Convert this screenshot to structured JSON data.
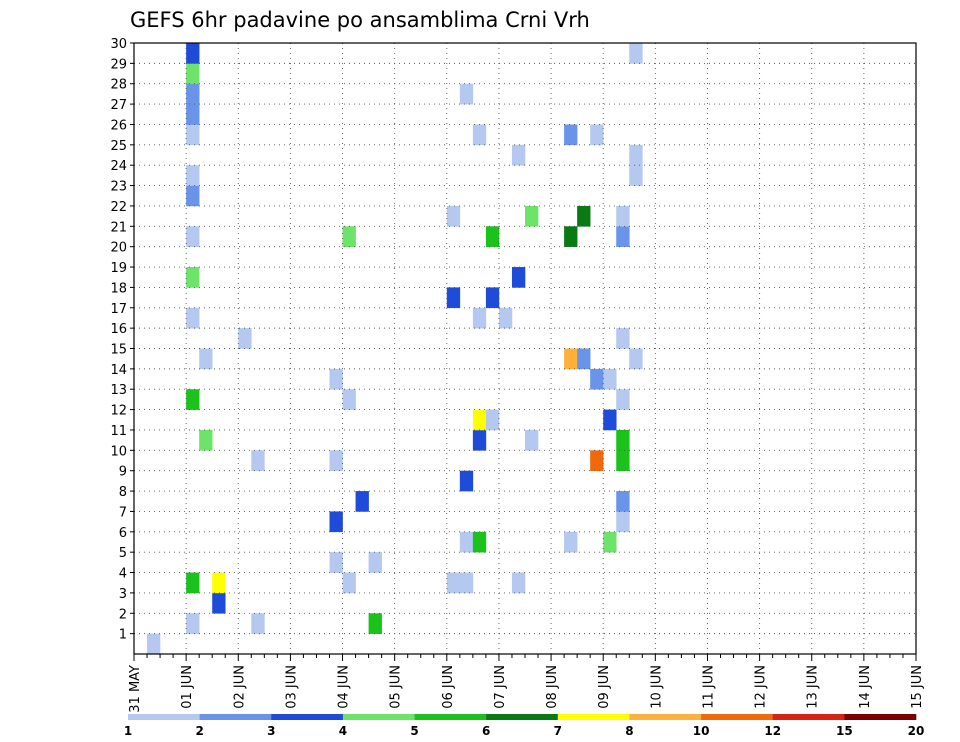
{
  "chart_data": {
    "type": "heatmap",
    "title": "GEFS 6hr padavine po ansamblima Crni Vrh",
    "xlabel": "",
    "ylabel": "",
    "x_tick_labels": [
      "31 MAY",
      "01 JUN",
      "02 JUN",
      "03 JUN",
      "04 JUN",
      "05 JUN",
      "06 JUN",
      "07 JUN",
      "08 JUN",
      "09 JUN",
      "10 JUN",
      "11 JUN",
      "12 JUN",
      "13 JUN",
      "14 JUN",
      "15 JUN"
    ],
    "x_unit": "6hr step",
    "xlim": [
      0,
      60
    ],
    "y_tick_labels": [
      "1",
      "2",
      "3",
      "4",
      "5",
      "6",
      "7",
      "8",
      "9",
      "10",
      "11",
      "12",
      "13",
      "14",
      "15",
      "16",
      "17",
      "18",
      "19",
      "20",
      "21",
      "22",
      "23",
      "24",
      "25",
      "26",
      "27",
      "28",
      "29",
      "30"
    ],
    "ylim": [
      0,
      30
    ],
    "grid": true,
    "colorbar": {
      "placement": "bottom",
      "colors": [
        "#b4c8f0",
        "#6a94ea",
        "#1e4cd8",
        "#6ee36a",
        "#1cc21c",
        "#0a7a14",
        "#ffff00",
        "#ffb03a",
        "#f2680c",
        "#d72214",
        "#7a0000"
      ],
      "labels": [
        "1",
        "2",
        "3",
        "4",
        "5",
        "6",
        "7",
        "8",
        "10",
        "12",
        "15",
        "20"
      ]
    },
    "cells": [
      [
        1,
        0,
        1
      ],
      [
        4,
        1,
        1
      ],
      [
        4,
        3,
        5
      ],
      [
        4,
        12,
        5
      ],
      [
        4,
        16,
        1
      ],
      [
        4,
        18,
        4
      ],
      [
        4,
        20,
        1
      ],
      [
        4,
        22,
        2
      ],
      [
        4,
        23,
        1
      ],
      [
        4,
        25,
        1
      ],
      [
        4,
        26,
        2
      ],
      [
        4,
        27,
        2
      ],
      [
        4,
        28,
        4
      ],
      [
        4,
        29,
        3
      ],
      [
        5,
        10,
        4
      ],
      [
        5,
        14,
        1
      ],
      [
        6,
        2,
        3
      ],
      [
        6,
        3,
        7
      ],
      [
        8,
        15,
        1
      ],
      [
        9,
        1,
        1
      ],
      [
        9,
        9,
        1
      ],
      [
        15,
        4,
        1
      ],
      [
        15,
        6,
        3
      ],
      [
        15,
        9,
        1
      ],
      [
        15,
        13,
        1
      ],
      [
        16,
        3,
        1
      ],
      [
        16,
        12,
        1
      ],
      [
        16,
        20,
        4
      ],
      [
        17,
        7,
        3
      ],
      [
        18,
        1,
        5
      ],
      [
        18,
        4,
        1
      ],
      [
        24,
        3,
        1
      ],
      [
        24,
        17,
        3
      ],
      [
        24,
        21,
        1
      ],
      [
        25,
        3,
        1
      ],
      [
        25,
        5,
        1
      ],
      [
        25,
        8,
        3
      ],
      [
        25,
        27,
        1
      ],
      [
        26,
        5,
        5
      ],
      [
        26,
        10,
        3
      ],
      [
        26,
        11,
        7
      ],
      [
        26,
        16,
        1
      ],
      [
        26,
        25,
        1
      ],
      [
        27,
        11,
        1
      ],
      [
        27,
        17,
        3
      ],
      [
        27,
        20,
        5
      ],
      [
        28,
        16,
        1
      ],
      [
        29,
        3,
        1
      ],
      [
        29,
        18,
        3
      ],
      [
        29,
        24,
        1
      ],
      [
        30,
        10,
        1
      ],
      [
        30,
        21,
        4
      ],
      [
        33,
        5,
        1
      ],
      [
        33,
        14,
        8
      ],
      [
        33,
        20,
        6
      ],
      [
        33,
        25,
        2
      ],
      [
        34,
        14,
        2
      ],
      [
        34,
        21,
        6
      ],
      [
        35,
        9,
        9
      ],
      [
        35,
        13,
        2
      ],
      [
        35,
        25,
        1
      ],
      [
        36,
        5,
        4
      ],
      [
        36,
        11,
        3
      ],
      [
        36,
        13,
        1
      ],
      [
        37,
        6,
        1
      ],
      [
        37,
        7,
        2
      ],
      [
        37,
        9,
        5
      ],
      [
        37,
        10,
        5
      ],
      [
        37,
        12,
        1
      ],
      [
        37,
        15,
        1
      ],
      [
        37,
        20,
        2
      ],
      [
        37,
        21,
        1
      ],
      [
        38,
        14,
        1
      ],
      [
        38,
        23,
        1
      ],
      [
        38,
        24,
        1
      ],
      [
        38,
        29,
        1
      ]
    ]
  }
}
